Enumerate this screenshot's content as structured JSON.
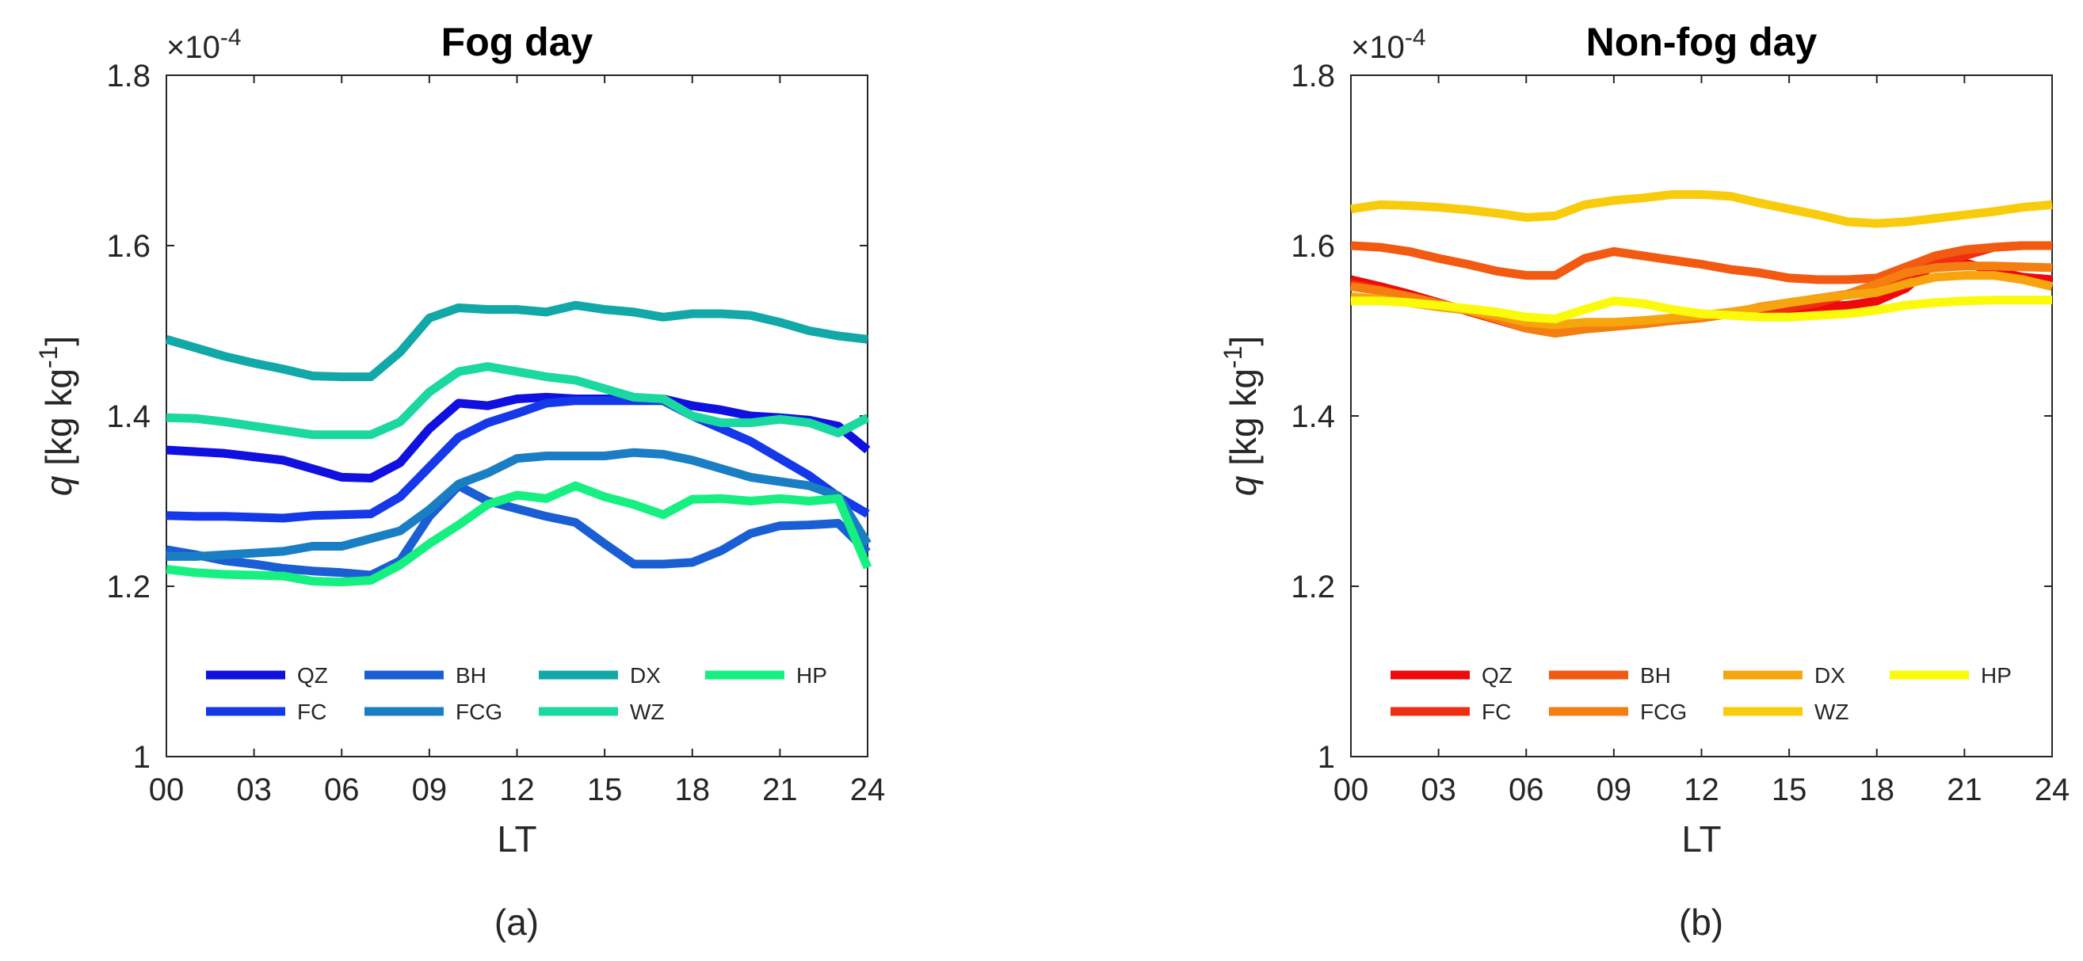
{
  "figure": {
    "panel_labels": [
      "(a)",
      "(b)"
    ]
  },
  "chart_data": [
    {
      "type": "line",
      "title": "Fog day",
      "xlabel": "LT",
      "ylabel": "q [kg kg^-1]",
      "ylabel_main": "q [kg kg",
      "ylabel_sup": "-1",
      "ylabel_close": "]",
      "y_scale_base": "×10",
      "y_scale_exp": "-4",
      "xlim": [
        0,
        24
      ],
      "ylim": [
        1.0,
        1.8
      ],
      "xticks": [
        0,
        3,
        6,
        9,
        12,
        15,
        18,
        21,
        24
      ],
      "xtick_labels": [
        "00",
        "03",
        "06",
        "09",
        "12",
        "15",
        "18",
        "21",
        "24"
      ],
      "yticks": [
        1.0,
        1.2,
        1.4,
        1.6,
        1.8
      ],
      "ytick_labels": [
        "1",
        "1.2",
        "1.4",
        "1.6",
        "1.8"
      ],
      "legend_position": "lower-center",
      "x": [
        0,
        1,
        2,
        3,
        4,
        5,
        6,
        7,
        8,
        9,
        10,
        11,
        12,
        13,
        14,
        15,
        16,
        17,
        18,
        19,
        20,
        21,
        22,
        23,
        24
      ],
      "series": [
        {
          "name": "QZ",
          "color": "#1010e0",
          "values": [
            1.36,
            1.358,
            1.356,
            1.352,
            1.348,
            1.338,
            1.328,
            1.327,
            1.345,
            1.385,
            1.415,
            1.412,
            1.42,
            1.422,
            1.42,
            1.42,
            1.42,
            1.42,
            1.412,
            1.407,
            1.4,
            1.398,
            1.395,
            1.388,
            1.36
          ]
        },
        {
          "name": "FC",
          "color": "#1538e8",
          "values": [
            1.283,
            1.282,
            1.282,
            1.281,
            1.28,
            1.283,
            1.284,
            1.285,
            1.305,
            1.34,
            1.375,
            1.392,
            1.403,
            1.415,
            1.418,
            1.418,
            1.418,
            1.418,
            1.4,
            1.385,
            1.37,
            1.35,
            1.33,
            1.305,
            1.285
          ]
        },
        {
          "name": "BH",
          "color": "#1a5ed4",
          "values": [
            1.243,
            1.237,
            1.23,
            1.226,
            1.221,
            1.218,
            1.216,
            1.213,
            1.23,
            1.282,
            1.318,
            1.3,
            1.291,
            1.282,
            1.275,
            1.25,
            1.226,
            1.226,
            1.228,
            1.242,
            1.262,
            1.271,
            1.272,
            1.274,
            1.24
          ]
        },
        {
          "name": "FCG",
          "color": "#1a7ec4",
          "values": [
            1.235,
            1.235,
            1.237,
            1.239,
            1.241,
            1.247,
            1.247,
            1.256,
            1.265,
            1.29,
            1.32,
            1.333,
            1.35,
            1.353,
            1.353,
            1.353,
            1.357,
            1.355,
            1.348,
            1.338,
            1.328,
            1.323,
            1.318,
            1.306,
            1.25
          ]
        },
        {
          "name": "DX",
          "color": "#12a8a8",
          "values": [
            1.49,
            1.48,
            1.47,
            1.462,
            1.455,
            1.447,
            1.446,
            1.446,
            1.475,
            1.515,
            1.527,
            1.525,
            1.525,
            1.522,
            1.53,
            1.525,
            1.522,
            1.516,
            1.52,
            1.52,
            1.518,
            1.51,
            1.5,
            1.494,
            1.49
          ]
        },
        {
          "name": "WZ",
          "color": "#1ad8a0",
          "values": [
            1.398,
            1.397,
            1.393,
            1.388,
            1.383,
            1.378,
            1.378,
            1.378,
            1.393,
            1.428,
            1.452,
            1.458,
            1.452,
            1.446,
            1.442,
            1.432,
            1.422,
            1.42,
            1.4,
            1.392,
            1.392,
            1.396,
            1.392,
            1.38,
            1.398
          ]
        },
        {
          "name": "HP",
          "color": "#15f080",
          "values": [
            1.22,
            1.216,
            1.214,
            1.213,
            1.212,
            1.206,
            1.205,
            1.207,
            1.225,
            1.25,
            1.272,
            1.296,
            1.307,
            1.303,
            1.318,
            1.305,
            1.296,
            1.284,
            1.302,
            1.303,
            1.3,
            1.303,
            1.3,
            1.303,
            1.222
          ]
        }
      ]
    },
    {
      "type": "line",
      "title": "Non-fog day",
      "xlabel": "LT",
      "ylabel": "q [kg kg^-1]",
      "ylabel_main": "q [kg kg",
      "ylabel_sup": "-1",
      "ylabel_close": "]",
      "y_scale_base": "×10",
      "y_scale_exp": "-4",
      "xlim": [
        0,
        24
      ],
      "ylim": [
        1.0,
        1.8
      ],
      "xticks": [
        0,
        3,
        6,
        9,
        12,
        15,
        18,
        21,
        24
      ],
      "xtick_labels": [
        "00",
        "03",
        "06",
        "09",
        "12",
        "15",
        "18",
        "21",
        "24"
      ],
      "yticks": [
        1.0,
        1.2,
        1.4,
        1.6,
        1.8
      ],
      "ytick_labels": [
        "1",
        "1.2",
        "1.4",
        "1.6",
        "1.8"
      ],
      "legend_position": "lower-center",
      "x": [
        0,
        1,
        2,
        3,
        4,
        5,
        6,
        7,
        8,
        9,
        10,
        11,
        12,
        13,
        14,
        15,
        16,
        17,
        18,
        19,
        20,
        21,
        22,
        23,
        24
      ],
      "series": [
        {
          "name": "QZ",
          "color": "#ee0a0a",
          "values": [
            1.56,
            1.552,
            1.543,
            1.533,
            1.523,
            1.513,
            1.503,
            1.5,
            1.505,
            1.508,
            1.51,
            1.515,
            1.518,
            1.52,
            1.522,
            1.525,
            1.528,
            1.53,
            1.535,
            1.55,
            1.58,
            1.58,
            1.57,
            1.563,
            1.56
          ]
        },
        {
          "name": "FC",
          "color": "#f02e12",
          "values": [
            1.555,
            1.548,
            1.54,
            1.532,
            1.524,
            1.516,
            1.506,
            1.503,
            1.505,
            1.508,
            1.51,
            1.513,
            1.517,
            1.52,
            1.522,
            1.527,
            1.533,
            1.543,
            1.555,
            1.565,
            1.58,
            1.588,
            1.598,
            1.6,
            1.6
          ]
        },
        {
          "name": "BH",
          "color": "#f25a12",
          "values": [
            1.6,
            1.598,
            1.593,
            1.585,
            1.578,
            1.57,
            1.565,
            1.565,
            1.585,
            1.593,
            1.588,
            1.583,
            1.578,
            1.572,
            1.568,
            1.562,
            1.56,
            1.56,
            1.562,
            1.575,
            1.588,
            1.595,
            1.598,
            1.6,
            1.6
          ]
        },
        {
          "name": "FCG",
          "color": "#f47e10",
          "values": [
            1.552,
            1.547,
            1.54,
            1.532,
            1.524,
            1.514,
            1.503,
            1.497,
            1.502,
            1.505,
            1.508,
            1.512,
            1.515,
            1.52,
            1.528,
            1.533,
            1.538,
            1.543,
            1.555,
            1.568,
            1.574,
            1.576,
            1.576,
            1.575,
            1.574
          ]
        },
        {
          "name": "DX",
          "color": "#f6a50e",
          "values": [
            1.54,
            1.537,
            1.533,
            1.528,
            1.524,
            1.518,
            1.51,
            1.507,
            1.51,
            1.51,
            1.512,
            1.515,
            1.518,
            1.522,
            1.527,
            1.533,
            1.538,
            1.542,
            1.545,
            1.555,
            1.563,
            1.565,
            1.565,
            1.56,
            1.552
          ]
        },
        {
          "name": "WZ",
          "color": "#f8cc0c",
          "values": [
            1.643,
            1.648,
            1.647,
            1.645,
            1.642,
            1.638,
            1.633,
            1.635,
            1.648,
            1.653,
            1.656,
            1.66,
            1.66,
            1.658,
            1.65,
            1.643,
            1.636,
            1.628,
            1.626,
            1.628,
            1.632,
            1.636,
            1.64,
            1.645,
            1.648
          ]
        },
        {
          "name": "HP",
          "color": "#fafa0a",
          "values": [
            1.535,
            1.535,
            1.533,
            1.53,
            1.526,
            1.522,
            1.516,
            1.514,
            1.525,
            1.535,
            1.532,
            1.525,
            1.52,
            1.518,
            1.516,
            1.516,
            1.518,
            1.52,
            1.524,
            1.53,
            1.533,
            1.535,
            1.536,
            1.536,
            1.536
          ]
        }
      ]
    }
  ]
}
